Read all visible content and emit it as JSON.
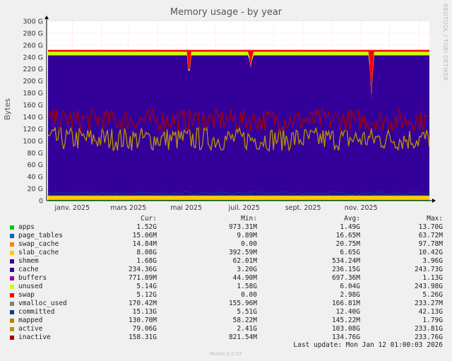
{
  "title": "Memory usage - by year",
  "side_text": "RRDTOOL / TOBI OETIKER",
  "footer": "Munin 2.0.57",
  "last_update": "Last update: Mon Jan 12 01:00:03 2026",
  "legend_headers": {
    "cur": "Cur:",
    "min": "Min:",
    "avg": "Avg:",
    "max": "Max:"
  },
  "legend": [
    {
      "name": "apps",
      "color": "#00cc00",
      "cur": "1.52G",
      "min": "973.31M",
      "avg": "1.49G",
      "max": "13.70G"
    },
    {
      "name": "page_tables",
      "color": "#0066b3",
      "cur": "15.06M",
      "min": "9.89M",
      "avg": "16.65M",
      "max": "63.72M"
    },
    {
      "name": "swap_cache",
      "color": "#ff8000",
      "cur": "14.84M",
      "min": "0.00",
      "avg": "20.75M",
      "max": "97.78M"
    },
    {
      "name": "slab_cache",
      "color": "#ffcc00",
      "cur": "8.08G",
      "min": "392.59M",
      "avg": "6.65G",
      "max": "10.42G"
    },
    {
      "name": "shmem",
      "color": "#330099",
      "cur": "1.68G",
      "min": "62.01M",
      "avg": "534.24M",
      "max": "3.96G"
    },
    {
      "name": "cache",
      "color": "#330099",
      "cur": "234.36G",
      "min": "3.20G",
      "avg": "236.15G",
      "max": "243.73G"
    },
    {
      "name": "buffers",
      "color": "#990099",
      "cur": "771.89M",
      "min": "44.90M",
      "avg": "697.36M",
      "max": "1.13G"
    },
    {
      "name": "unused",
      "color": "#ccff00",
      "cur": "5.14G",
      "min": "1.58G",
      "avg": "6.04G",
      "max": "243.98G"
    },
    {
      "name": "swap",
      "color": "#ff0000",
      "cur": "5.12G",
      "min": "0.00",
      "avg": "2.98G",
      "max": "5.26G"
    },
    {
      "name": "vmalloc_used",
      "color": "#808080",
      "cur": "170.42M",
      "min": "155.96M",
      "avg": "166.81M",
      "max": "233.27M"
    },
    {
      "name": "committed",
      "color": "#00457a",
      "cur": "15.13G",
      "min": "5.51G",
      "avg": "12.40G",
      "max": "42.13G"
    },
    {
      "name": "mapped",
      "color": "#c07c00",
      "cur": "130.70M",
      "min": "58.22M",
      "avg": "145.22M",
      "max": "1.79G"
    },
    {
      "name": "active",
      "color": "#b89500",
      "cur": "79.06G",
      "min": "2.41G",
      "avg": "103.08G",
      "max": "233.81G"
    },
    {
      "name": "inactive",
      "color": "#aa0000",
      "cur": "158.31G",
      "min": "821.54M",
      "avg": "134.76G",
      "max": "233.76G"
    }
  ],
  "chart_data": {
    "type": "area",
    "title": "Memory usage - by year",
    "ylabel": "Bytes",
    "y_unit": "G",
    "ylim": [
      0,
      300
    ],
    "y_ticks": [
      "0",
      "20 G",
      "40 G",
      "60 G",
      "80 G",
      "100 G",
      "120 G",
      "140 G",
      "160 G",
      "180 G",
      "200 G",
      "220 G",
      "240 G",
      "260 G",
      "280 G",
      "300 G"
    ],
    "x_ticks": [
      "janv. 2025",
      "mars 2025",
      "mai 2025",
      "juil. 2025",
      "sept. 2025",
      "nov. 2025"
    ],
    "x_range": [
      "2024-12",
      "2026-01"
    ],
    "grid": true,
    "stack_bottom_G": {
      "apps": 1.5,
      "slab_cache": 6.65,
      "shmem": 0.5,
      "buffers": 0.7
    },
    "stack_top_G": {
      "cache_top": 243,
      "unused_top": 249,
      "swap_top": 252
    },
    "stack_dips": [
      {
        "date": "2025-05-04",
        "cache_top": 205
      },
      {
        "date": "2025-07-08",
        "cache_top": 222
      },
      {
        "date": "2025-11-12",
        "cache_top": 165
      }
    ],
    "lines_G": {
      "committed": 12.4,
      "active_avg": 103.08,
      "inactive_avg": 134.76
    }
  }
}
